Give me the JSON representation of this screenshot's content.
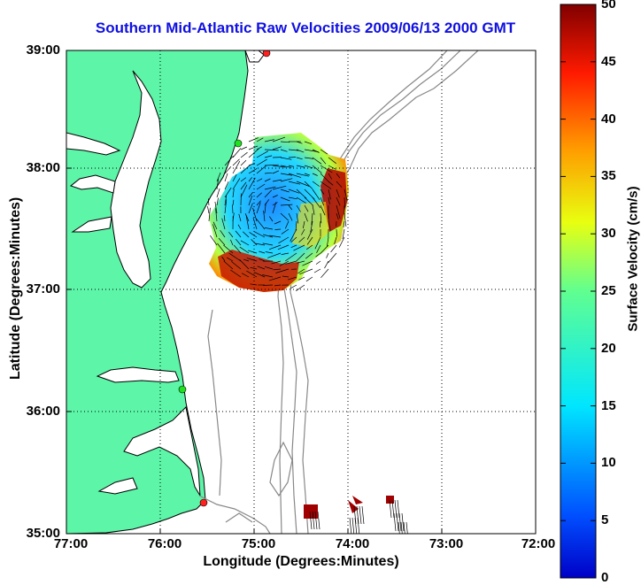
{
  "map": {
    "title": "Southern Mid-Atlantic Raw Velocities 2009/06/13 2000 GMT",
    "xlabel": "Longitude (Degrees:Minutes)",
    "ylabel": "Latitude (Degrees:Minutes)",
    "lon_range": [
      -77,
      -72
    ],
    "lat_range": [
      35,
      39
    ],
    "x_ticks": [
      "77:00",
      "76:00",
      "75:00",
      "74:00",
      "73:00",
      "72:00"
    ],
    "y_ticks": [
      "39:00",
      "38:00",
      "37:00",
      "36:00",
      "35:00"
    ],
    "grid": "dotted",
    "land_color": "#5df5a8",
    "coastline_color": "#000000",
    "bathymetry_color": "#808080"
  },
  "colorbar": {
    "label": "Surface Velocity (cm/s)",
    "min": 0,
    "max": 50,
    "ticks": [
      "0",
      "5",
      "10",
      "15",
      "20",
      "25",
      "30",
      "35",
      "40",
      "45",
      "50"
    ],
    "colormap": "jet"
  },
  "stations": [
    {
      "color": "#ff2020"
    },
    {
      "color": "#20e020"
    },
    {
      "color": "#20e020"
    },
    {
      "color": "#ff2020"
    }
  ]
}
